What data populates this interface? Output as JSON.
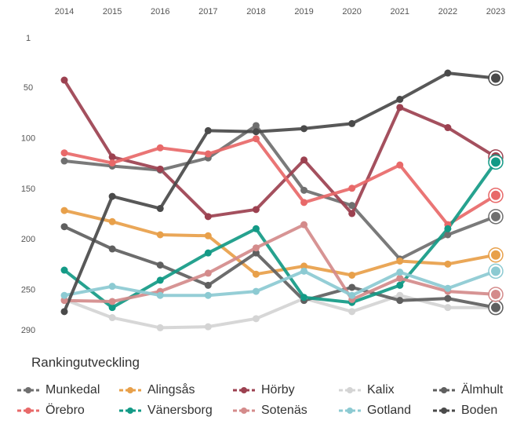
{
  "chart_data": {
    "type": "line",
    "title": "Rankingutveckling",
    "x": [
      "2014",
      "2015",
      "2016",
      "2017",
      "2018",
      "2019",
      "2020",
      "2021",
      "2022",
      "2023"
    ],
    "y_ticks": [
      "1",
      "50",
      "100",
      "150",
      "200",
      "250",
      "290"
    ],
    "y_reversed": true,
    "ylim": [
      1,
      290
    ],
    "grid": false,
    "legend_position": "bottom",
    "series": [
      {
        "name": "Munkedal",
        "color": "#6f6f6f",
        "values": [
          123,
          128,
          132,
          120,
          88,
          152,
          167,
          220,
          196,
          178
        ]
      },
      {
        "name": "Alingsås",
        "color": "#e8a04a",
        "values": [
          172,
          183,
          196,
          197,
          235,
          227,
          236,
          222,
          225,
          216
        ]
      },
      {
        "name": "Hörby",
        "color": "#9c4150",
        "values": [
          43,
          119,
          131,
          178,
          171,
          122,
          175,
          70,
          90,
          119
        ]
      },
      {
        "name": "Kalix",
        "color": "#d4d4d4",
        "values": [
          260,
          278,
          288,
          287,
          279,
          259,
          272,
          256,
          268,
          268
        ]
      },
      {
        "name": "Älmhult",
        "color": "#5f5f5f",
        "values": [
          188,
          210,
          226,
          246,
          214,
          261,
          248,
          261,
          259,
          268
        ]
      },
      {
        "name": "Örebro",
        "color": "#e86969",
        "values": [
          115,
          125,
          110,
          116,
          101,
          164,
          150,
          127,
          186,
          157
        ]
      },
      {
        "name": "Vänersborg",
        "color": "#139a86",
        "values": [
          231,
          268,
          241,
          214,
          190,
          258,
          263,
          246,
          190,
          124
        ]
      },
      {
        "name": "Sotenäs",
        "color": "#d48b8b",
        "values": [
          261,
          262,
          252,
          234,
          209,
          186,
          260,
          239,
          252,
          255
        ]
      },
      {
        "name": "Gotland",
        "color": "#8ccad2",
        "values": [
          256,
          247,
          256,
          256,
          252,
          232,
          256,
          233,
          249,
          232
        ]
      },
      {
        "name": "Boden",
        "color": "#4a4a4a",
        "values": [
          272,
          158,
          170,
          93,
          94,
          91,
          86,
          62,
          36,
          41
        ]
      }
    ]
  }
}
